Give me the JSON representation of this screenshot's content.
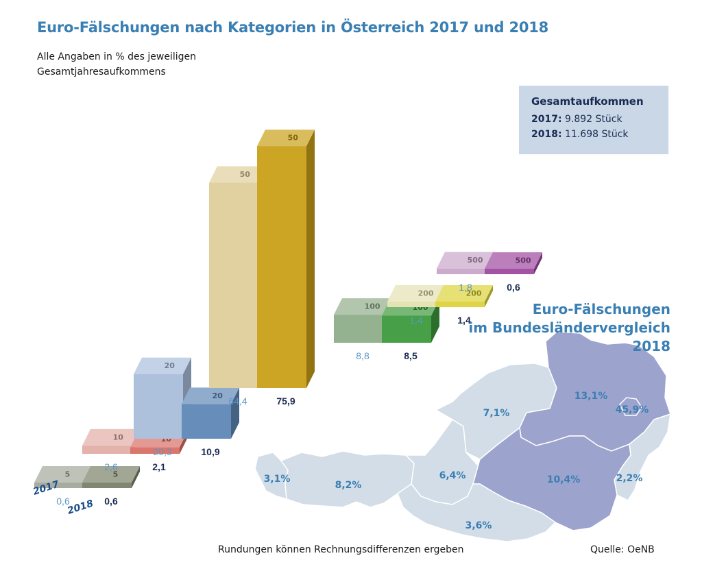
{
  "title": "Euro-Fälschungen nach Kategorien in Österreich 2017 und 2018",
  "subtitle": "Alle Angaben in % des jeweiligen Gesamtjahresaufkommens",
  "totals": {
    "heading": "Gesamtaufkommen",
    "y2017_label": "2017:",
    "y2017_value": "9.892 Stück",
    "y2018_label": "2018:",
    "y2018_value": "11.698 Stück"
  },
  "year_labels": [
    "2017",
    "2018"
  ],
  "map": {
    "title_line1": "Euro-Fälschungen",
    "title_line2": "im Bundesländervergleich",
    "title_line3": "2018",
    "highlight_color": "#9ca3cd",
    "base_color": "#d3dde7",
    "regions": [
      {
        "name": "Vorarlberg",
        "value": "3,1%"
      },
      {
        "name": "Tirol",
        "value": "8,2%"
      },
      {
        "name": "Salzburg",
        "value": "6,4%"
      },
      {
        "name": "Oberösterreich",
        "value": "7,1%"
      },
      {
        "name": "Niederösterreich",
        "value": "13,1%"
      },
      {
        "name": "Wien",
        "value": "45,9%"
      },
      {
        "name": "Steiermark",
        "value": "10,4%"
      },
      {
        "name": "Burgenland",
        "value": "2,2%"
      },
      {
        "name": "Kärnten",
        "value": "3,6%"
      }
    ]
  },
  "chart_data": {
    "type": "bar",
    "title": "Euro-Fälschungen nach Kategorien in Österreich 2017 und 2018",
    "subtitle": "Alle Angaben in % des jeweiligen Gesamtjahresaufkommens",
    "categories": [
      "5",
      "10",
      "20",
      "50",
      "100",
      "200",
      "500"
    ],
    "series": [
      {
        "name": "2017",
        "values": [
          0.6,
          2.6,
          20.3,
          64.4,
          8.8,
          1.4,
          1.8
        ],
        "labels": [
          "0,6",
          "2,6",
          "20,3",
          "64,4",
          "8,8",
          "1,4",
          "1,8"
        ]
      },
      {
        "name": "2018",
        "values": [
          0.6,
          2.1,
          10.9,
          75.9,
          8.5,
          1.4,
          0.6
        ],
        "labels": [
          "0,6",
          "2,1",
          "10,9",
          "75,9",
          "8,5",
          "1,4",
          "0,6"
        ]
      }
    ],
    "colors": {
      "5": {
        "2017": "#a3a89b",
        "2018": "#7a8068"
      },
      "10": {
        "2017": "#e2aea6",
        "2018": "#d96f64"
      },
      "20": {
        "2017": "#a9bedb",
        "2018": "#5f88b6"
      },
      "50": {
        "2017": "#dfcf9c",
        "2018": "#c9a018"
      },
      "100": {
        "2017": "#8fae8a",
        "2018": "#3d9a3d"
      },
      "200": {
        "2017": "#e4e1b0",
        "2018": "#dcd23a"
      },
      "500": {
        "2017": "#c9a6c9",
        "2018": "#9e4a9e"
      }
    }
  },
  "footnote": "Rundungen können Rechnungsdifferenzen ergeben",
  "source": "Quelle: OeNB"
}
